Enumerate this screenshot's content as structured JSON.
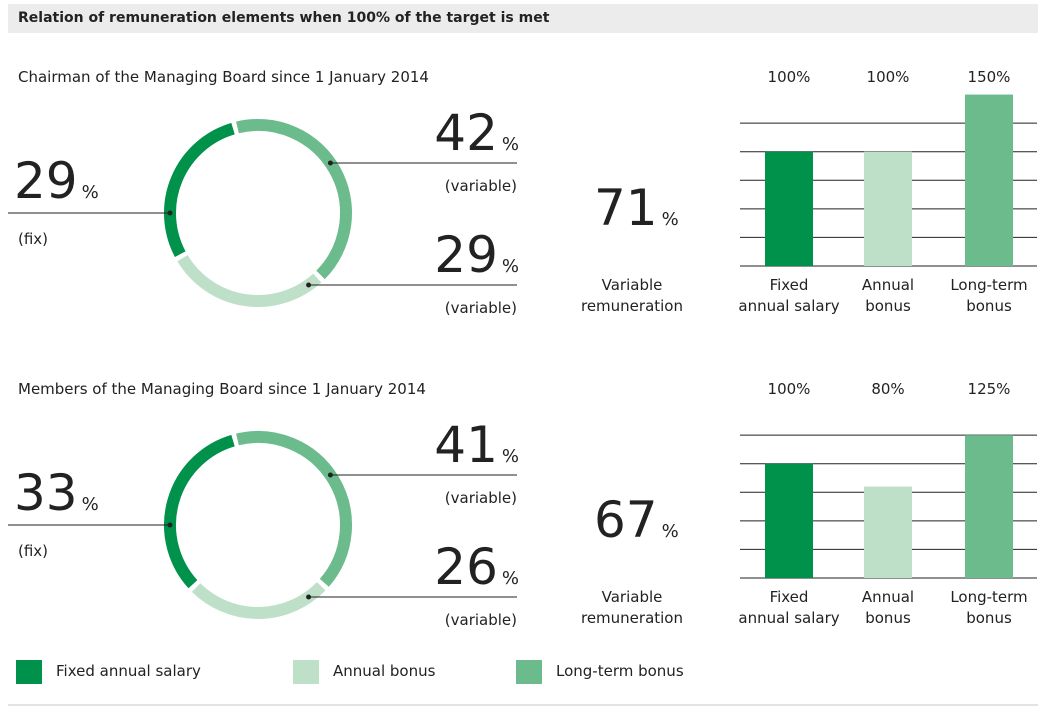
{
  "header": {
    "title": "Relation of remuneration elements when 100% of the target is met"
  },
  "unit": "%",
  "chart_data": [
    {
      "type": "donut",
      "title": "Chairman of the Managing Board since 1 January 2014",
      "categories": [
        "Fixed annual salary",
        "Annual bonus",
        "Long-term bonus"
      ],
      "values": [
        29,
        29,
        42
      ],
      "segment_labels": [
        "(fix)",
        "(variable)",
        "(variable)"
      ],
      "colors": [
        "#00914a",
        "#bfe0c8",
        "#6cbb8c"
      ],
      "total": 71,
      "total_label": "Variable\nremuneration"
    },
    {
      "type": "bar",
      "categories": [
        "Fixed\nannual salary",
        "Annual\nbonus",
        "Long-term\nbonus"
      ],
      "values": [
        100,
        100,
        150
      ],
      "value_labels": [
        "100%",
        "100%",
        "150%"
      ],
      "colors": [
        "#00914a",
        "#bfe0c8",
        "#6cbb8c"
      ],
      "ylim": [
        0,
        150
      ],
      "yticks": [
        0,
        25,
        50,
        75,
        100,
        125
      ],
      "grid": true
    },
    {
      "type": "donut",
      "title": "Members of the Managing Board since 1 January 2014",
      "categories": [
        "Fixed annual salary",
        "Annual bonus",
        "Long-term bonus"
      ],
      "values": [
        33,
        26,
        41
      ],
      "segment_labels": [
        "(fix)",
        "(variable)",
        "(variable)"
      ],
      "colors": [
        "#00914a",
        "#bfe0c8",
        "#6cbb8c"
      ],
      "total": 67,
      "total_label": "Variable\nremuneration"
    },
    {
      "type": "bar",
      "categories": [
        "Fixed\nannual salary",
        "Annual\nbonus",
        "Long-term\nbonus"
      ],
      "values": [
        100,
        80,
        125
      ],
      "value_labels": [
        "100%",
        "80%",
        "125%"
      ],
      "colors": [
        "#00914a",
        "#bfe0c8",
        "#6cbb8c"
      ],
      "ylim": [
        0,
        125
      ],
      "yticks": [
        0,
        25,
        50,
        75,
        100,
        125
      ],
      "grid": true
    }
  ],
  "legend": [
    {
      "name": "Fixed annual salary",
      "color": "#00914a"
    },
    {
      "name": "Annual bonus",
      "color": "#bfe0c8"
    },
    {
      "name": "Long-term bonus",
      "color": "#6cbb8c"
    }
  ]
}
